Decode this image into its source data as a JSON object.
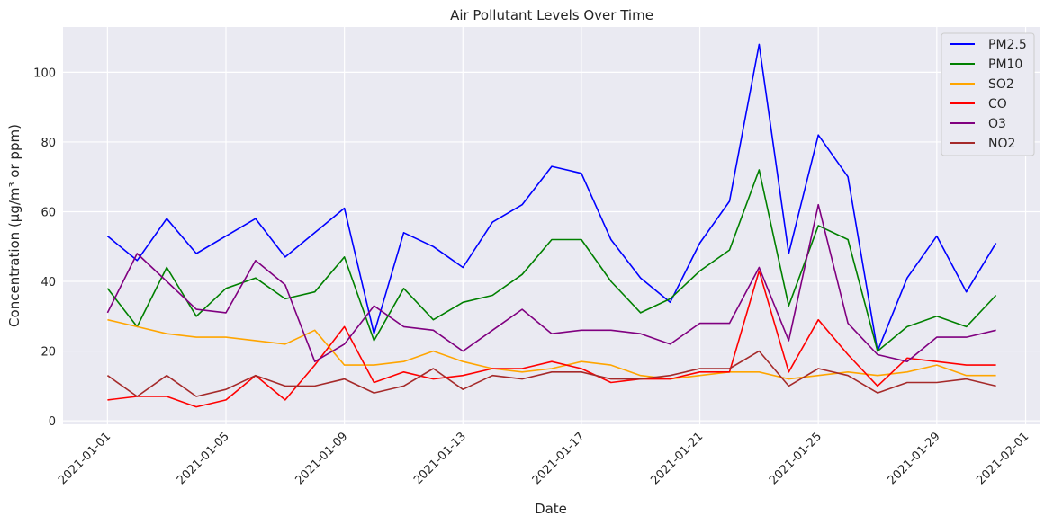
{
  "chart_data": {
    "type": "line",
    "title": "Air Pollutant Levels Over Time",
    "xlabel": "Date",
    "ylabel": "Concentration (µg/m³ or ppm)",
    "x": [
      "2021-01-01",
      "2021-01-02",
      "2021-01-03",
      "2021-01-04",
      "2021-01-05",
      "2021-01-06",
      "2021-01-07",
      "2021-01-08",
      "2021-01-09",
      "2021-01-10",
      "2021-01-11",
      "2021-01-12",
      "2021-01-13",
      "2021-01-14",
      "2021-01-15",
      "2021-01-16",
      "2021-01-17",
      "2021-01-18",
      "2021-01-19",
      "2021-01-20",
      "2021-01-21",
      "2021-01-22",
      "2021-01-23",
      "2021-01-24",
      "2021-01-25",
      "2021-01-26",
      "2021-01-27",
      "2021-01-28",
      "2021-01-29",
      "2021-01-30",
      "2021-01-31"
    ],
    "xtick_labels": [
      "2021-01-01",
      "2021-01-05",
      "2021-01-09",
      "2021-01-13",
      "2021-01-17",
      "2021-01-21",
      "2021-01-25",
      "2021-01-29",
      "2021-02-01"
    ],
    "xlim": [
      "2020-12-30T12:00",
      "2021-02-01T12:00"
    ],
    "ylim": [
      -1,
      113
    ],
    "yticks": [
      0,
      20,
      40,
      60,
      80,
      100
    ],
    "grid": true,
    "legend_position": "top-right",
    "series": [
      {
        "name": "PM2.5",
        "color": "#0000ff",
        "values": [
          53,
          46,
          58,
          48,
          53,
          58,
          47,
          54,
          61,
          25,
          54,
          50,
          44,
          57,
          62,
          73,
          71,
          52,
          41,
          34,
          51,
          63,
          108,
          48,
          82,
          70,
          20,
          41,
          53,
          37,
          51
        ]
      },
      {
        "name": "PM10",
        "color": "#008000",
        "values": [
          38,
          27,
          44,
          30,
          38,
          41,
          35,
          37,
          47,
          23,
          38,
          29,
          34,
          36,
          42,
          52,
          52,
          40,
          31,
          35,
          43,
          49,
          72,
          33,
          56,
          52,
          20,
          27,
          30,
          27,
          36
        ]
      },
      {
        "name": "SO2",
        "color": "#ffa500",
        "values": [
          29,
          27,
          25,
          24,
          24,
          23,
          22,
          26,
          16,
          16,
          17,
          20,
          17,
          15,
          14,
          15,
          17,
          16,
          13,
          12,
          13,
          14,
          14,
          12,
          13,
          14,
          13,
          14,
          16,
          13,
          13
        ]
      },
      {
        "name": "CO",
        "color": "#ff0000",
        "values": [
          6,
          7,
          7,
          4,
          6,
          13,
          6,
          16,
          27,
          11,
          14,
          12,
          13,
          15,
          15,
          17,
          15,
          11,
          12,
          12,
          14,
          14,
          43,
          14,
          29,
          19,
          10,
          18,
          17,
          16,
          16
        ]
      },
      {
        "name": "O3",
        "color": "#800080",
        "values": [
          31,
          48,
          40,
          32,
          31,
          46,
          39,
          17,
          22,
          33,
          27,
          26,
          20,
          26,
          32,
          25,
          26,
          26,
          25,
          22,
          28,
          28,
          44,
          23,
          62,
          28,
          19,
          17,
          24,
          24,
          26
        ]
      },
      {
        "name": "NO2",
        "color": "#a52a2a",
        "values": [
          13,
          7,
          13,
          7,
          9,
          13,
          10,
          10,
          12,
          8,
          10,
          15,
          9,
          13,
          12,
          14,
          14,
          12,
          12,
          13,
          15,
          15,
          20,
          10,
          15,
          13,
          8,
          11,
          11,
          12,
          10
        ]
      }
    ]
  }
}
